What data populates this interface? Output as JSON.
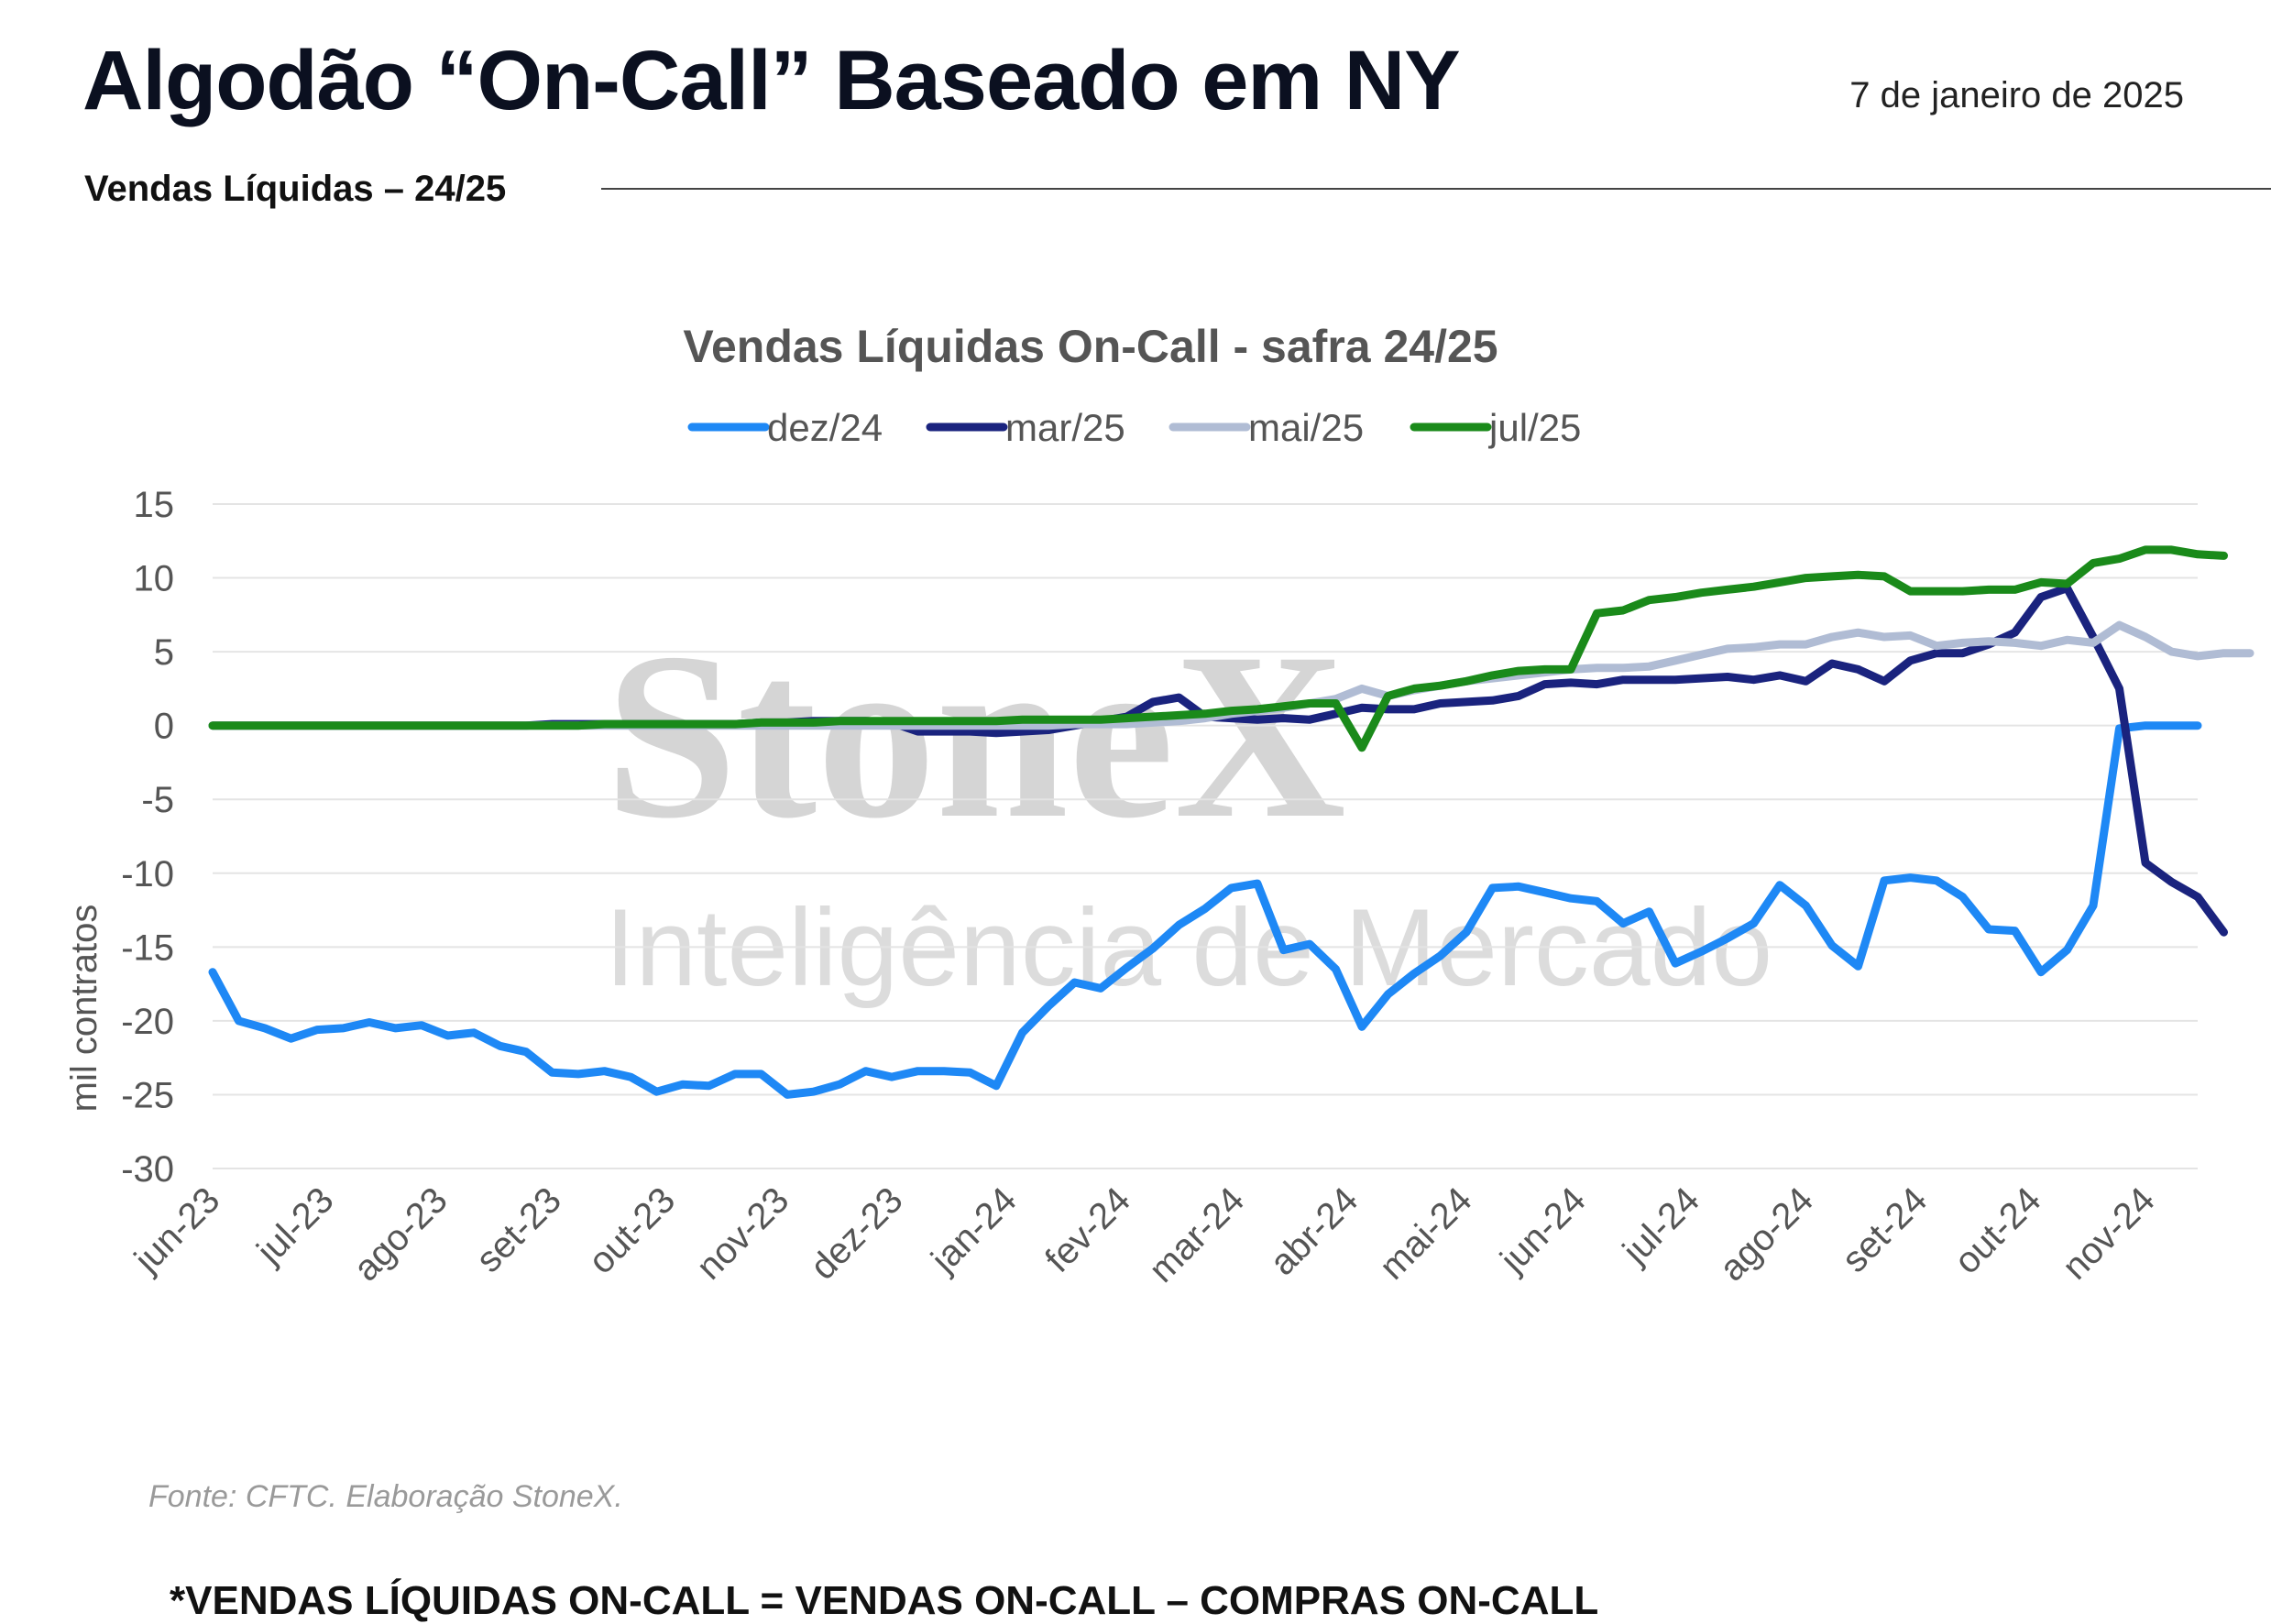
{
  "header": {
    "title": "Algodão “On-Call” Baseado em NY",
    "date": "7 de janeiro de 2025",
    "subtitle": "Vendas Líquidas – 24/25"
  },
  "watermark": {
    "brand": "StoneX",
    "tagline": "Inteligência de Mercado"
  },
  "footer": {
    "source": "Fonte: CFTC. Elaboração StoneX.",
    "footnote": "*VENDAS LÍQUIDAS ON-CALL = VENDAS ON-CALL – COMPRAS ON-CALL"
  },
  "chart_data": {
    "type": "line",
    "title": "Vendas Líquidas On-Call - safra 24/25",
    "ylabel": "mil contratos",
    "xlabel": "",
    "ylim": [
      -30,
      15
    ],
    "yticks": [
      15,
      10,
      5,
      0,
      -5,
      -10,
      -15,
      -20,
      -25,
      -30
    ],
    "xticks": [
      "jun-23",
      "jul-23",
      "ago-23",
      "set-23",
      "out-23",
      "nov-23",
      "dez-23",
      "jan-24",
      "fev-24",
      "mar-24",
      "abr-24",
      "mai-24",
      "jun-24",
      "jul-24",
      "ago-24",
      "set-24",
      "out-24",
      "nov-24"
    ],
    "grid": "horizontal",
    "legend": "top-center",
    "series": [
      {
        "name": "dez/24",
        "color": "#1e88f5",
        "values": [
          -16.7,
          -20.0,
          -20.5,
          -21.2,
          -20.6,
          -20.5,
          -20.1,
          -20.5,
          -20.3,
          -21.0,
          -20.8,
          -21.7,
          -22.1,
          -23.5,
          -23.6,
          -23.4,
          -23.8,
          -24.8,
          -24.3,
          -24.4,
          -23.6,
          -23.6,
          -25.0,
          -24.8,
          -24.3,
          -23.4,
          -23.8,
          -23.4,
          -23.4,
          -23.5,
          -24.4,
          -20.8,
          -19.0,
          -17.4,
          -17.8,
          -16.4,
          -15.1,
          -13.5,
          -12.4,
          -11.0,
          -10.7,
          -15.2,
          -14.8,
          -16.5,
          -20.4,
          -18.2,
          -16.8,
          -15.6,
          -14.0,
          -11.0,
          -10.9,
          -11.3,
          -11.7,
          -11.9,
          -13.4,
          -12.6,
          -16.1,
          -15.3,
          -14.4,
          -13.4,
          -10.8,
          -12.2,
          -14.9,
          -16.3,
          -10.5,
          -10.3,
          -10.5,
          -11.6,
          -13.8,
          -13.9,
          -16.7,
          -15.2,
          -12.2,
          -0.2,
          0.0,
          0.0,
          0.0
        ]
      },
      {
        "name": "mar/25",
        "color": "#1a237e",
        "values": [
          0.0,
          0.0,
          0.0,
          0.0,
          0.0,
          0.0,
          0.0,
          0.0,
          0.0,
          0.0,
          0.0,
          0.0,
          0.0,
          0.1,
          0.1,
          0.1,
          0.1,
          0.1,
          0.1,
          0.1,
          0.1,
          0.2,
          0.2,
          0.3,
          0.3,
          0.3,
          0.2,
          -0.4,
          -0.4,
          -0.4,
          -0.5,
          -0.4,
          -0.3,
          0.0,
          0.3,
          0.6,
          1.6,
          1.9,
          0.6,
          0.5,
          0.4,
          0.5,
          0.4,
          0.8,
          1.2,
          1.1,
          1.1,
          1.5,
          1.6,
          1.7,
          2.0,
          2.8,
          2.9,
          2.8,
          3.1,
          3.1,
          3.1,
          3.2,
          3.3,
          3.1,
          3.4,
          3.0,
          4.2,
          3.8,
          3.0,
          4.4,
          4.9,
          4.9,
          5.5,
          6.3,
          8.7,
          9.3,
          6.0,
          2.5,
          -9.3,
          -10.6,
          -11.6,
          -14.0
        ]
      },
      {
        "name": "mai/25",
        "color": "#b0bcd4",
        "values": [
          0.0,
          0.0,
          0.0,
          0.0,
          0.0,
          0.0,
          0.0,
          0.0,
          0.0,
          0.0,
          0.0,
          0.0,
          0.0,
          0.0,
          0.0,
          0.0,
          0.0,
          0.0,
          0.0,
          0.0,
          0.0,
          0.0,
          0.0,
          0.0,
          0.0,
          0.0,
          0.0,
          0.0,
          0.0,
          0.0,
          0.0,
          0.0,
          0.0,
          0.1,
          0.1,
          0.1,
          0.2,
          0.3,
          0.5,
          0.8,
          1.0,
          1.2,
          1.5,
          1.8,
          2.5,
          2.0,
          2.4,
          2.7,
          3.0,
          3.2,
          3.4,
          3.6,
          3.8,
          3.9,
          3.9,
          4.0,
          4.4,
          4.8,
          5.2,
          5.3,
          5.5,
          5.5,
          6.0,
          6.3,
          6.0,
          6.1,
          5.4,
          5.6,
          5.7,
          5.6,
          5.4,
          5.8,
          5.6,
          6.8,
          6.0,
          5.0,
          4.7,
          4.9,
          4.9
        ]
      },
      {
        "name": "jul/25",
        "color": "#1a8a1a",
        "values": [
          0.0,
          0.0,
          0.0,
          0.0,
          0.0,
          0.0,
          0.0,
          0.0,
          0.0,
          0.0,
          0.0,
          0.0,
          0.0,
          0.0,
          0.0,
          0.1,
          0.1,
          0.1,
          0.1,
          0.1,
          0.1,
          0.2,
          0.2,
          0.2,
          0.3,
          0.3,
          0.3,
          0.3,
          0.3,
          0.3,
          0.3,
          0.4,
          0.4,
          0.4,
          0.4,
          0.5,
          0.6,
          0.7,
          0.8,
          1.0,
          1.1,
          1.3,
          1.5,
          1.5,
          -1.5,
          2.0,
          2.5,
          2.7,
          3.0,
          3.4,
          3.7,
          3.8,
          3.8,
          7.6,
          7.8,
          8.5,
          8.7,
          9.0,
          9.2,
          9.4,
          9.7,
          10.0,
          10.1,
          10.2,
          10.1,
          9.1,
          9.1,
          9.1,
          9.2,
          9.2,
          9.7,
          9.6,
          11.0,
          11.3,
          11.9,
          11.9,
          11.6,
          11.5
        ]
      }
    ]
  }
}
